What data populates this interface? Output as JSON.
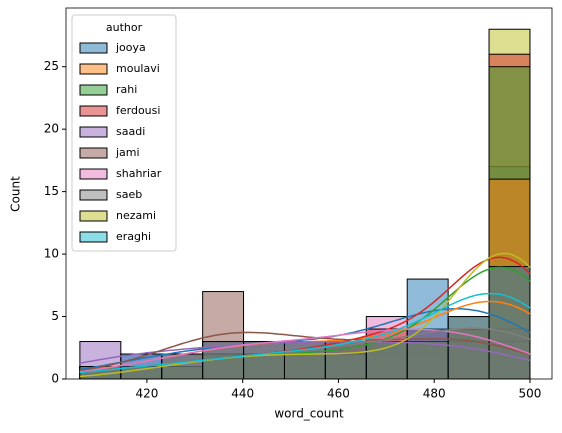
{
  "chart_data": {
    "type": "histogram",
    "x_label": "word_count",
    "y_label": "Count",
    "bins": [
      406,
      414.55,
      423.09,
      431.64,
      440.18,
      448.73,
      457.27,
      465.82,
      474.36,
      482.91,
      491.45,
      500
    ],
    "legend_title": "author",
    "legend": "upper left",
    "kde": true,
    "xlim": [
      403.1,
      504.6
    ],
    "xticks": [
      420,
      440,
      460,
      480,
      500
    ],
    "ylim": [
      0,
      29.7
    ],
    "yticks": [
      0,
      5,
      10,
      15,
      20,
      25
    ],
    "series": [
      {
        "name": "jooya",
        "color": "#1f77b4",
        "values": [
          1,
          2,
          2,
          3,
          3,
          3,
          3,
          3,
          8,
          5,
          9
        ]
      },
      {
        "name": "moulavi",
        "color": "#ff7f0e",
        "values": [
          1,
          1,
          2,
          3,
          3,
          3,
          3,
          3,
          3,
          5,
          16
        ]
      },
      {
        "name": "rahi",
        "color": "#2ca02c",
        "values": [
          1,
          1,
          1,
          2,
          2,
          2,
          2,
          3,
          3,
          4,
          25
        ]
      },
      {
        "name": "ferdousi",
        "color": "#d62728",
        "values": [
          1,
          1,
          1,
          2,
          2,
          2,
          3,
          4,
          4,
          4,
          26
        ]
      },
      {
        "name": "saadi",
        "color": "#9467bd",
        "values": [
          3,
          2,
          2,
          3,
          3,
          3,
          3,
          3,
          3,
          3,
          3
        ]
      },
      {
        "name": "jami",
        "color": "#8c564b",
        "values": [
          1,
          1,
          2,
          7,
          3,
          3,
          3,
          3,
          3,
          4,
          4
        ]
      },
      {
        "name": "shahriar",
        "color": "#e377c2",
        "values": [
          1,
          1,
          2,
          3,
          3,
          3,
          3,
          5,
          4,
          4,
          4
        ]
      },
      {
        "name": "saeb",
        "color": "#7f7f7f",
        "values": [
          1,
          1,
          1,
          2,
          2,
          2,
          3,
          3,
          3,
          4,
          9
        ]
      },
      {
        "name": "nezami",
        "color": "#bcbd22",
        "values": [
          0,
          1,
          1,
          2,
          2,
          2,
          2,
          2,
          2,
          3,
          28
        ]
      },
      {
        "name": "eraghi",
        "color": "#17becf",
        "values": [
          1,
          1,
          1,
          2,
          2,
          2,
          3,
          3,
          4,
          5,
          17
        ]
      }
    ]
  }
}
